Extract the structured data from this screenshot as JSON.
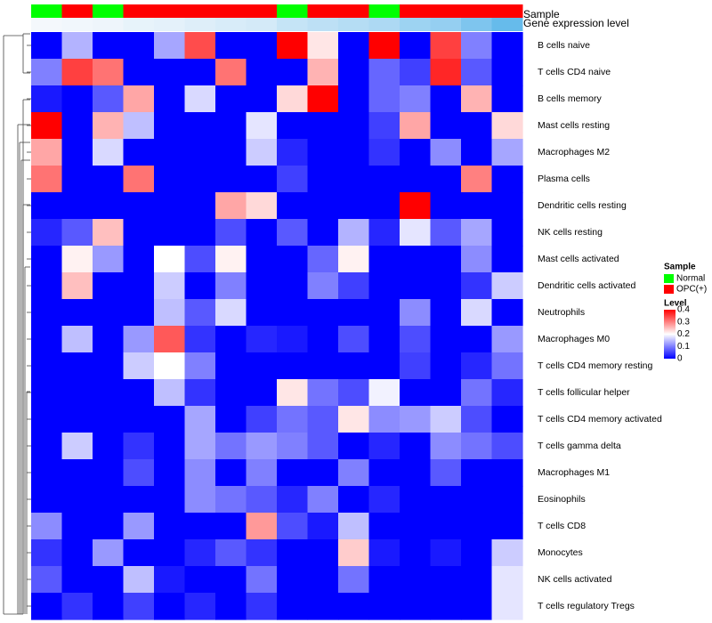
{
  "chart_data": {
    "type": "heatmap",
    "title": "",
    "annotation_labels": [
      "Sample",
      "Gene expression level"
    ],
    "columns": 16,
    "sample_annotation": [
      "Normal",
      "OPC(+)",
      "Normal",
      "OPC(+)",
      "OPC(+)",
      "OPC(+)",
      "OPC(+)",
      "OPC(+)",
      "Normal",
      "OPC(+)",
      "OPC(+)",
      "Normal",
      "OPC(+)",
      "OPC(+)",
      "OPC(+)",
      "OPC(+)"
    ],
    "gene_expression_level": [
      0.0,
      0.02,
      0.04,
      0.08,
      0.1,
      0.14,
      0.18,
      0.2,
      0.3,
      0.35,
      0.4,
      0.45,
      0.55,
      0.6,
      0.75,
      0.9
    ],
    "rows": [
      "B cells naive",
      "T cells CD4 naive",
      "B cells memory",
      "Mast cells resting",
      "Macrophages M2",
      "Plasma cells",
      "Dendritic cells resting",
      "NK cells resting",
      "Mast cells activated",
      "Dendritic cells activated",
      "Neutrophils",
      "Macrophages M0",
      "T cells CD4 memory resting",
      "T cells follicular helper",
      "T cells CD4 memory activated",
      "T cells gamma delta",
      "Macrophages M1",
      "Eosinophils",
      "T cells CD8",
      "Monocytes",
      "NK cells activated",
      "T cells regulatory  Tregs"
    ],
    "values": [
      [
        0,
        0.14,
        0,
        0,
        0.13,
        0.34,
        0,
        0,
        0.4,
        0.22,
        0,
        0.4,
        0,
        0.35,
        0.1,
        0
      ],
      [
        0.1,
        0.35,
        0.31,
        0,
        0,
        0,
        0.31,
        0,
        0,
        0.26,
        0,
        0.08,
        0.05,
        0.37,
        0.07,
        0
      ],
      [
        0.02,
        0,
        0.07,
        0.27,
        0,
        0.17,
        0,
        0,
        0.23,
        0.4,
        0,
        0.08,
        0.1,
        0,
        0.26,
        0
      ],
      [
        0.4,
        0,
        0.26,
        0.15,
        0,
        0,
        0,
        0.18,
        0,
        0,
        0,
        0.05,
        0.27,
        0,
        0,
        0.23
      ],
      [
        0.27,
        0,
        0.17,
        0,
        0,
        0,
        0,
        0.16,
        0.03,
        0,
        0,
        0.04,
        0,
        0.11,
        0,
        0.13
      ],
      [
        0.31,
        0,
        0,
        0.31,
        0,
        0,
        0,
        0,
        0.05,
        0,
        0,
        0,
        0,
        0,
        0.3,
        0
      ],
      [
        0,
        0,
        0,
        0,
        0,
        0,
        0.27,
        0.23,
        0,
        0,
        0,
        0,
        0.4,
        0,
        0,
        0
      ],
      [
        0.03,
        0.07,
        0.25,
        0,
        0,
        0,
        0.06,
        0,
        0.07,
        0,
        0.14,
        0.03,
        0.18,
        0.07,
        0.13,
        0
      ],
      [
        0,
        0.21,
        0.12,
        0,
        0.2,
        0.06,
        0.21,
        0,
        0,
        0.08,
        0.21,
        0,
        0,
        0,
        0.11,
        0
      ],
      [
        0,
        0.25,
        0,
        0,
        0.16,
        0,
        0.1,
        0,
        0,
        0.1,
        0.05,
        0,
        0,
        0,
        0.04,
        0.16
      ],
      [
        0,
        0,
        0,
        0,
        0.15,
        0.07,
        0.17,
        0,
        0,
        0,
        0,
        0,
        0.11,
        0,
        0.17,
        0
      ],
      [
        0,
        0.15,
        0,
        0.12,
        0.33,
        0.04,
        0,
        0.03,
        0.02,
        0,
        0.06,
        0,
        0.06,
        0,
        0,
        0.12
      ],
      [
        0,
        0,
        0,
        0.16,
        0.2,
        0.1,
        0,
        0,
        0,
        0,
        0,
        0,
        0.05,
        0,
        0.03,
        0.09
      ],
      [
        0,
        0,
        0,
        0,
        0.15,
        0.04,
        0,
        0,
        0.22,
        0.09,
        0.06,
        0.19,
        0,
        0,
        0.09,
        0.03
      ],
      [
        0,
        0,
        0,
        0,
        0,
        0.13,
        0,
        0.05,
        0.09,
        0.07,
        0.22,
        0.11,
        0.12,
        0.16,
        0.06,
        0
      ],
      [
        0,
        0.16,
        0,
        0.04,
        0,
        0.13,
        0.09,
        0.12,
        0.1,
        0.07,
        0,
        0.03,
        0,
        0.11,
        0.09,
        0.06
      ],
      [
        0,
        0,
        0,
        0.06,
        0,
        0.11,
        0,
        0.1,
        0,
        0,
        0.1,
        0,
        0,
        0.07,
        0,
        0
      ],
      [
        0,
        0,
        0,
        0,
        0,
        0.11,
        0.09,
        0.07,
        0.03,
        0.1,
        0,
        0.03,
        0,
        0,
        0,
        0
      ],
      [
        0.11,
        0,
        0,
        0.12,
        0,
        0,
        0,
        0.28,
        0.06,
        0.02,
        0.15,
        0,
        0,
        0,
        0,
        0
      ],
      [
        0.04,
        0,
        0.12,
        0,
        0,
        0.03,
        0.07,
        0.04,
        0,
        0,
        0.24,
        0.02,
        0,
        0.02,
        0,
        0.16
      ],
      [
        0.07,
        0,
        0,
        0.15,
        0.02,
        0,
        0,
        0.09,
        0,
        0,
        0.09,
        0,
        0,
        0,
        0,
        0.18
      ],
      [
        0,
        0.04,
        0,
        0.05,
        0,
        0.03,
        0,
        0.04,
        0,
        0,
        0,
        0,
        0,
        0,
        0,
        0.18
      ]
    ],
    "color_scale": {
      "min": 0,
      "mid": 0.2,
      "max": 0.4,
      "low_color": "#0000ff",
      "mid_color": "#ffffff",
      "high_color": "#ff0000"
    },
    "row_dendrogram": true,
    "legend": {
      "placement": "right",
      "sample_title": "Sample",
      "sample_items": [
        {
          "label": "Normal",
          "color": "#00ff00"
        },
        {
          "label": "OPC(+)",
          "color": "#ff0000"
        }
      ],
      "level_title": "Level",
      "level_ticks": [
        "0.4",
        "0.3",
        "0.2",
        "0.1",
        "0"
      ],
      "level_tick_values": [
        0.4,
        0.3,
        0.2,
        0.1,
        0
      ]
    },
    "gene_expression_colors": {
      "low": "#f4f8fc",
      "high": "#56b4e9"
    }
  }
}
